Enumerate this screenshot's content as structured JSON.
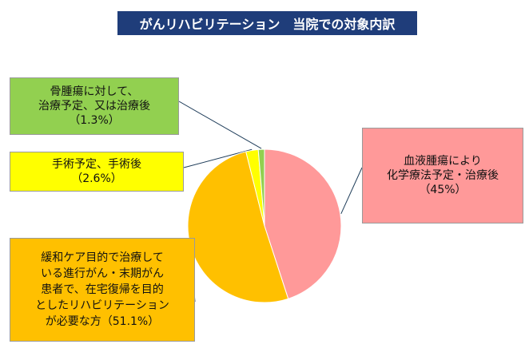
{
  "title": "がんリハビリテーション　当院での対象内訳",
  "chart_data": {
    "type": "pie",
    "title": "がんリハビリテーション　当院での対象内訳",
    "slices": [
      {
        "label": "血液腫瘍により化学療法予定・治療後",
        "value": 45,
        "value_text": "（45%）",
        "color": "#ff9999"
      },
      {
        "label": "緩和ケア目的で治療している進行がん・末期がん患者で、在宅復帰を目的としたリハビリテーションが必要な方",
        "value": 51.1,
        "value_text": "（51.1%）",
        "color": "#ffc000"
      },
      {
        "label": "手術予定、手術後",
        "value": 2.6,
        "value_text": "（2.6%）",
        "color": "#ffff00"
      },
      {
        "label": "骨腫瘍に対して、治療予定、又は治療後",
        "value": 1.3,
        "value_text": "（1.3%）",
        "color": "#92d050"
      }
    ]
  },
  "labels": {
    "blood": {
      "line1": "血液腫瘍により",
      "line2": "化学療法予定・治療後",
      "pct": "（45%）"
    },
    "bone": {
      "line1": "骨腫瘍に対して、",
      "line2": "治療予定、又は治療後",
      "pct": "（1.3%）"
    },
    "surgery": {
      "line1": "手術予定、手術後",
      "pct": "（2.6%）"
    },
    "palliative": {
      "line1": "緩和ケア目的で治療して",
      "line2": "いる進行がん・末期がん",
      "line3": "患者で、在宅復帰を目的",
      "line4": "としたリハビリテーション",
      "line5": "が必要な方（51.1%）"
    }
  }
}
